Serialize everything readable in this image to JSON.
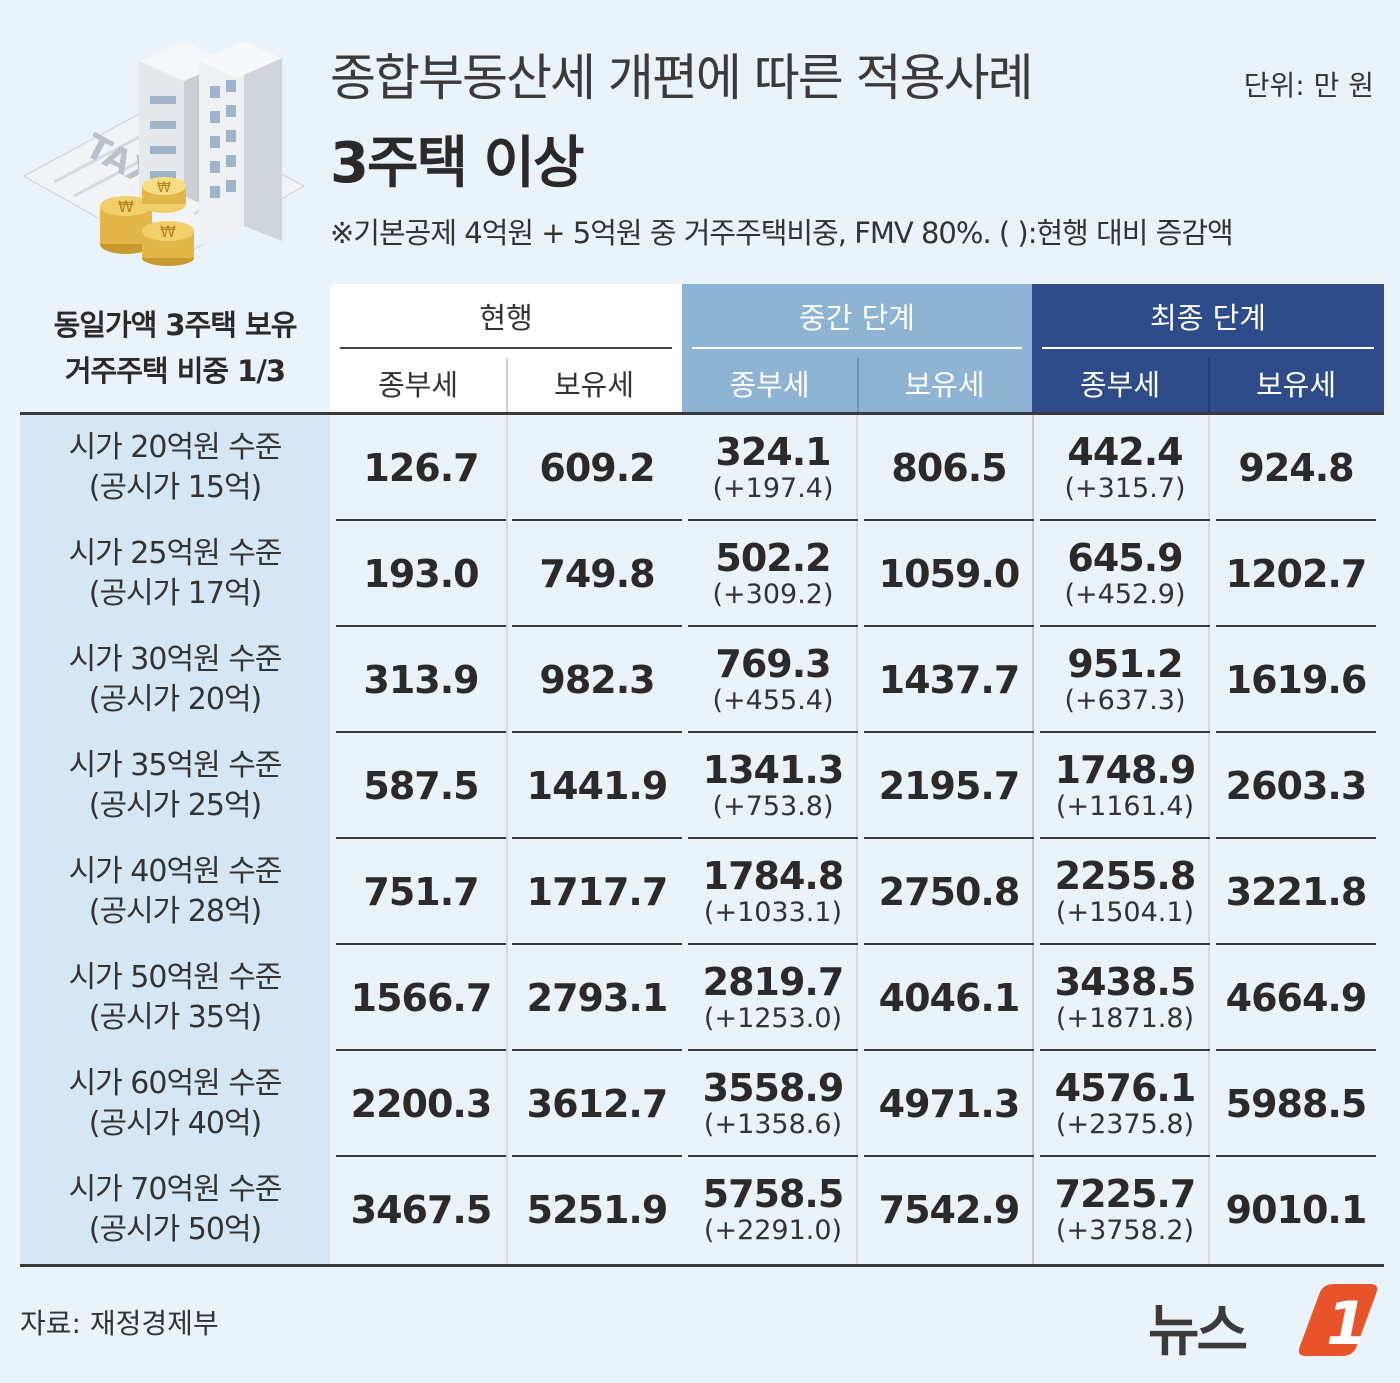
{
  "header": {
    "title": "종합부동산세 개편에 따른 적용사례",
    "subtitle": "3주택 이상",
    "note": "※기본공제 4억원 + 5억원 중 거주주택비중, FMV 80%. ( ):현행 대비 증감액",
    "unit": "단위: 만 원"
  },
  "illustration": {
    "sign_text": "TAX",
    "icon": "tax-buildings-coins-illustration"
  },
  "table": {
    "corner_line1": "동일가액 3주택 보유",
    "corner_line2": "거주주택 비중 1/3",
    "groups": [
      {
        "title": "현행",
        "sub1": "종부세",
        "sub2": "보유세",
        "color": "#ffffff"
      },
      {
        "title": "중간 단계",
        "sub1": "종부세",
        "sub2": "보유세",
        "color": "#8fb3d2"
      },
      {
        "title": "최종 단계",
        "sub1": "종부세",
        "sub2": "보유세",
        "color": "#2e4b8a"
      }
    ]
  },
  "chart_data": {
    "type": "table",
    "title": "종합부동산세 개편에 따른 적용사례",
    "subtitle": "3주택 이상",
    "rows": [
      {
        "label1": "시가 20억원 수준",
        "label2": "(공시가 15억)",
        "cur_jong": "126.7",
        "cur_bo": "609.2",
        "mid_jong": "324.1",
        "mid_delta": "(+197.4)",
        "mid_bo": "806.5",
        "fin_jong": "442.4",
        "fin_delta": "(+315.7)",
        "fin_bo": "924.8"
      },
      {
        "label1": "시가 25억원 수준",
        "label2": "(공시가 17억)",
        "cur_jong": "193.0",
        "cur_bo": "749.8",
        "mid_jong": "502.2",
        "mid_delta": "(+309.2)",
        "mid_bo": "1059.0",
        "fin_jong": "645.9",
        "fin_delta": "(+452.9)",
        "fin_bo": "1202.7"
      },
      {
        "label1": "시가 30억원 수준",
        "label2": "(공시가 20억)",
        "cur_jong": "313.9",
        "cur_bo": "982.3",
        "mid_jong": "769.3",
        "mid_delta": "(+455.4)",
        "mid_bo": "1437.7",
        "fin_jong": "951.2",
        "fin_delta": "(+637.3)",
        "fin_bo": "1619.6"
      },
      {
        "label1": "시가 35억원 수준",
        "label2": "(공시가 25억)",
        "cur_jong": "587.5",
        "cur_bo": "1441.9",
        "mid_jong": "1341.3",
        "mid_delta": "(+753.8)",
        "mid_bo": "2195.7",
        "fin_jong": "1748.9",
        "fin_delta": "(+1161.4)",
        "fin_bo": "2603.3"
      },
      {
        "label1": "시가 40억원 수준",
        "label2": "(공시가 28억)",
        "cur_jong": "751.7",
        "cur_bo": "1717.7",
        "mid_jong": "1784.8",
        "mid_delta": "(+1033.1)",
        "mid_bo": "2750.8",
        "fin_jong": "2255.8",
        "fin_delta": "(+1504.1)",
        "fin_bo": "3221.8"
      },
      {
        "label1": "시가 50억원 수준",
        "label2": "(공시가 35억)",
        "cur_jong": "1566.7",
        "cur_bo": "2793.1",
        "mid_jong": "2819.7",
        "mid_delta": "(+1253.0)",
        "mid_bo": "4046.1",
        "fin_jong": "3438.5",
        "fin_delta": "(+1871.8)",
        "fin_bo": "4664.9"
      },
      {
        "label1": "시가 60억원 수준",
        "label2": "(공시가 40억)",
        "cur_jong": "2200.3",
        "cur_bo": "3612.7",
        "mid_jong": "3558.9",
        "mid_delta": "(+1358.6)",
        "mid_bo": "4971.3",
        "fin_jong": "4576.1",
        "fin_delta": "(+2375.8)",
        "fin_bo": "5988.5"
      },
      {
        "label1": "시가 70억원 수준",
        "label2": "(공시가 50억)",
        "cur_jong": "3467.5",
        "cur_bo": "5251.9",
        "mid_jong": "5758.5",
        "mid_delta": "(+2291.0)",
        "mid_bo": "7542.9",
        "fin_jong": "7225.7",
        "fin_delta": "(+3758.2)",
        "fin_bo": "9010.1"
      }
    ]
  },
  "footer": {
    "source": "자료: 재정경제부",
    "logo_text": "뉴스",
    "logo_mark": "1",
    "logo_color": "#e8542a"
  }
}
